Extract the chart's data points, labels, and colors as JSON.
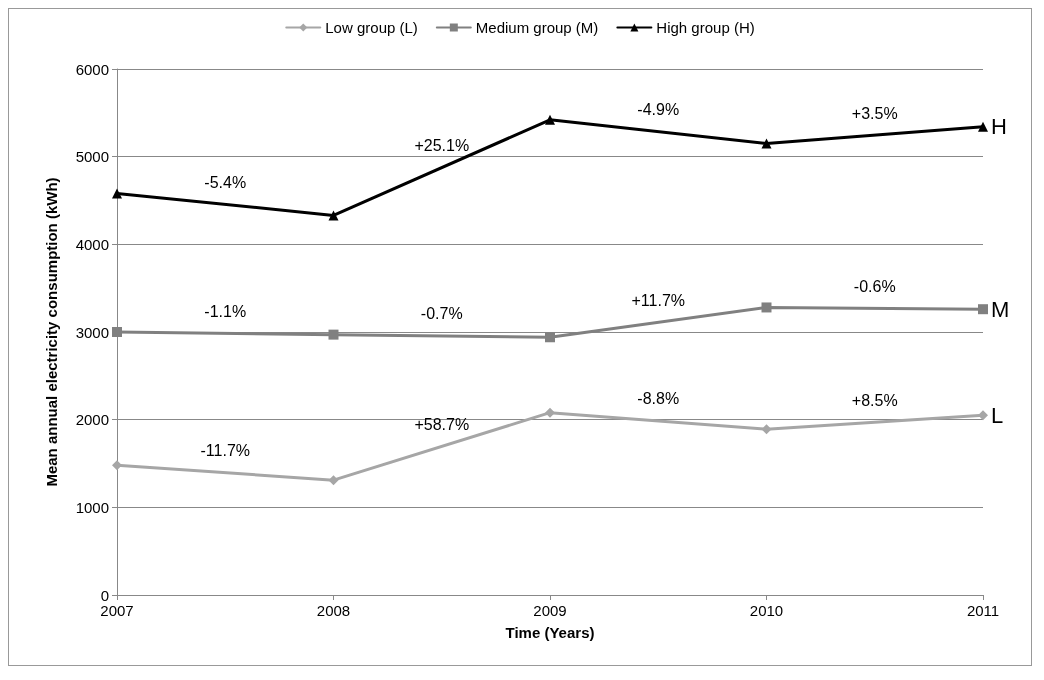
{
  "chart_data": {
    "type": "line",
    "xlabel": "Time (Years)",
    "ylabel": "Mean annual electricity consumption (kWh)",
    "x": [
      2007,
      2008,
      2009,
      2010,
      2011
    ],
    "xlim": [
      2007,
      2011
    ],
    "xticks": [
      2007,
      2008,
      2009,
      2010,
      2011
    ],
    "ylim": [
      0,
      6000
    ],
    "yticks": [
      0,
      1000,
      2000,
      3000,
      4000,
      5000,
      6000
    ],
    "grid": "y",
    "legend": "top",
    "series": [
      {
        "name": "Low group (L)",
        "color": "#a6a6a6",
        "marker": "diamond",
        "values": [
          1480,
          1310,
          2080,
          1890,
          2050
        ]
      },
      {
        "name": "Medium group (M)",
        "color": "#808080",
        "marker": "square",
        "values": [
          3000,
          2970,
          2940,
          3280,
          3260
        ]
      },
      {
        "name": "High group (H)",
        "color": "#000000",
        "marker": "triangle",
        "values": [
          4580,
          4330,
          5420,
          5150,
          5340
        ]
      }
    ],
    "annotations": [
      "-11.7%",
      "+58.7%",
      "-8.8%",
      "+8.5%",
      "-1.1%",
      "-0.7%",
      "+11.7%",
      "-0.6%",
      "-5.4%",
      "+25.1%",
      "-4.9%",
      "+3.5%",
      "L",
      "M",
      "H"
    ]
  }
}
